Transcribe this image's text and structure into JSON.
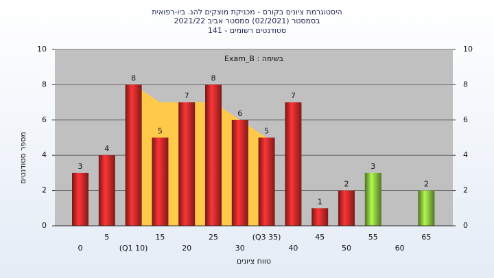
{
  "chart_data": {
    "type": "bar",
    "title": [
      "היסטוגרמת ציונים בקורס - מכניקת מוצקים להנ. ביו-רפואית",
      "בסמסטר  (02/2021)  סמסטר אביב 2021/22",
      "סטודנטים רשומים - 141"
    ],
    "annotation": "Exam_B : בשימה",
    "y_label": "מספר סטודנטים",
    "x_label": "טווח ציונים",
    "categories": [
      "0",
      "5",
      "(Q1 10)",
      "15",
      "20",
      "25",
      "30",
      "(Q3 35)",
      "40",
      "45",
      "50",
      "55",
      "60",
      "65"
    ],
    "values": [
      3,
      4,
      8,
      5,
      7,
      8,
      6,
      5,
      7,
      1,
      2,
      3,
      null,
      2
    ],
    "colors": [
      "#d42a2a",
      "#d42a2a",
      "#d42a2a",
      "#d42a2a",
      "#d42a2a",
      "#d42a2a",
      "#d42a2a",
      "#d42a2a",
      "#d42a2a",
      "#d42a2a",
      "#d42a2a",
      "#8dc63f",
      "#8dc63f",
      "#8dc63f"
    ],
    "area": {
      "color": "#ffc94a",
      "start": 2,
      "values": [
        8,
        7,
        7,
        7,
        6,
        5
      ]
    },
    "ylim": [
      0,
      10
    ],
    "yticks": [
      0,
      2,
      4,
      6,
      8,
      10
    ],
    "grid": true
  }
}
